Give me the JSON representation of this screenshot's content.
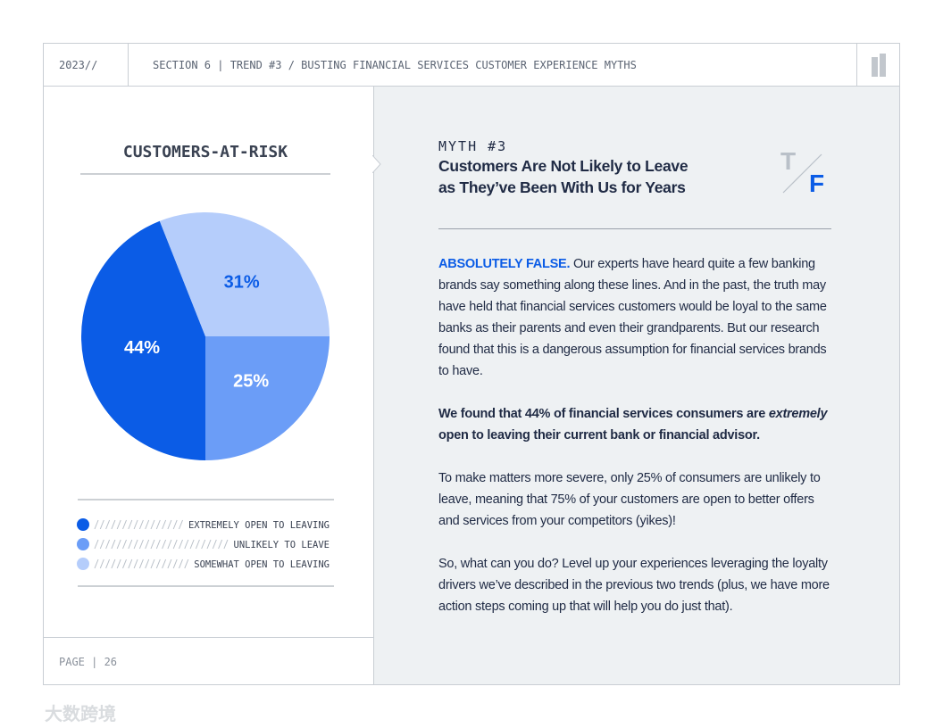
{
  "header": {
    "year": "2023//",
    "section": "SECTION 6 | TREND #3 / BUSTING FINANCIAL SERVICES CUSTOMER EXPERIENCE MYTHS"
  },
  "chart_data": {
    "type": "pie",
    "title": "CUSTOMERS-AT-RISK",
    "series": [
      {
        "name": "EXTREMELY OPEN TO LEAVING",
        "color": "#0b5ce6"
      },
      {
        "name": "UNLIKELY TO LEAVE",
        "color": "#6b9df7"
      },
      {
        "name": "SOMEWHAT OPEN TO LEAVING",
        "color": "#b5cdfb"
      }
    ],
    "values": [
      44,
      25,
      31
    ],
    "value_labels": [
      "44%",
      "25%",
      "31%"
    ]
  },
  "myth": {
    "label": "MYTH #3",
    "title_line1": "Customers Are Not Likely to Leave",
    "title_line2": "as They’ve Been With Us for Years",
    "badge_t": "T",
    "badge_f": "F"
  },
  "body": {
    "p1_lead": "ABSOLUTELY FALSE.",
    "p1": " Our experts have heard quite a few banking brands say something along these lines. And in the past, the truth may have held that financial services customers would be loyal to the same banks as their parents and even their grandparents. But our research found that this is a dangerous assumption for financial services brands to have.",
    "p2_a": "We found that 44% of financial services consumers are ",
    "p2_em": "extremely",
    "p2_b": " open to leaving their current bank or financial advisor.",
    "p3": "To make matters more severe, only 25% of consumers are unlikely to leave, meaning that 75% of your customers are open to better offers and services from your competitors (yikes)!",
    "p4": "So, what can you do? Level up your experiences leveraging the loyalty drivers we’ve described in the previous two trends (plus, we have more action steps coming up that will help you do just that)."
  },
  "footer": {
    "page": "PAGE | 26"
  },
  "watermark": "大数跨境"
}
